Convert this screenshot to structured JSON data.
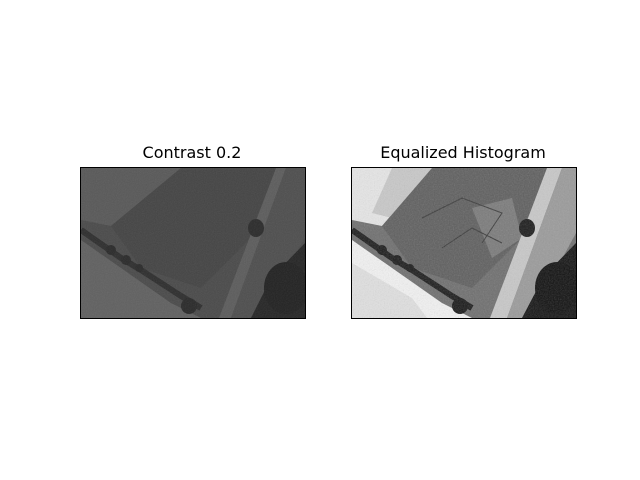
{
  "figure": {
    "panels": [
      {
        "title": "Contrast 0.2",
        "image": "aerial-fields-low-contrast"
      },
      {
        "title": "Equalized Histogram",
        "image": "aerial-fields-equalized"
      }
    ]
  }
}
